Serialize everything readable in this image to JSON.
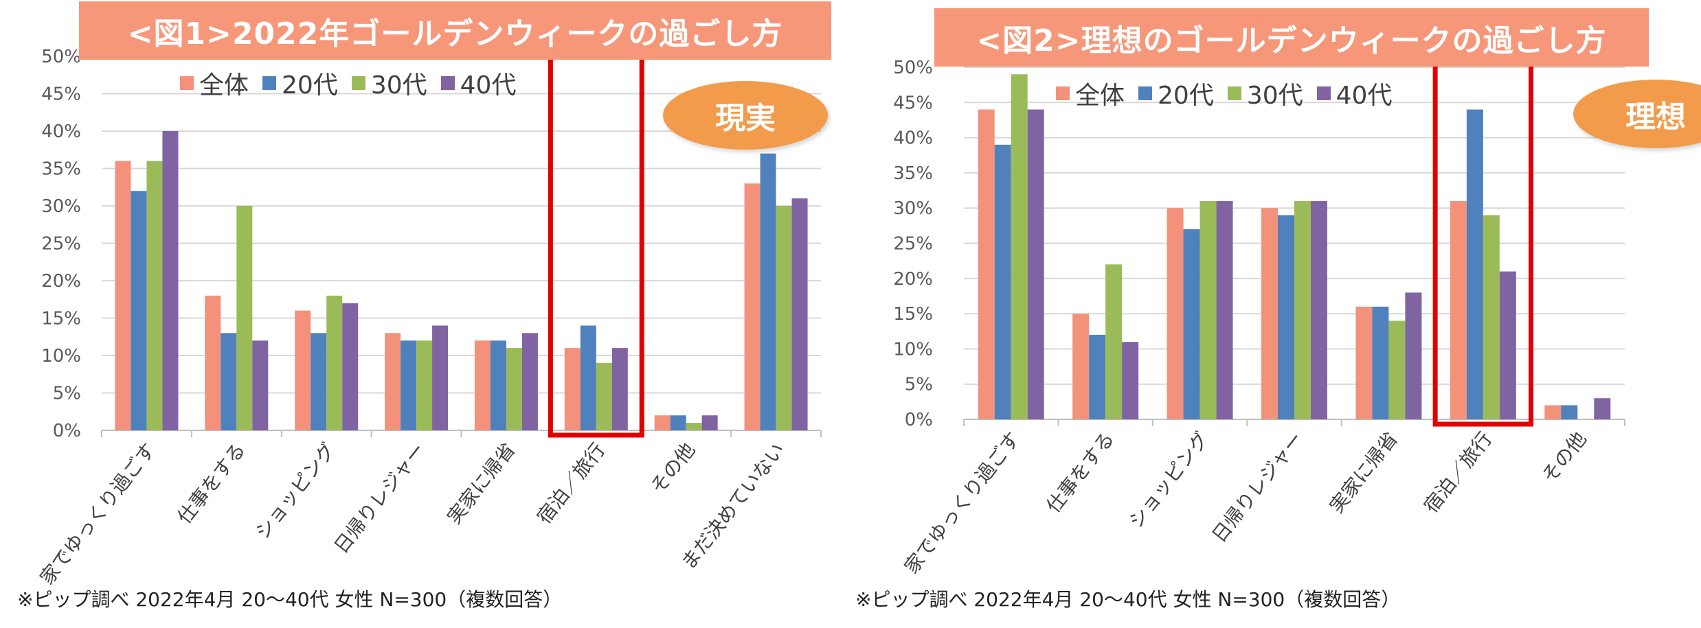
{
  "chart_data": [
    {
      "type": "bar",
      "title": "<図1>2022年ゴールデンウィークの過ごし方",
      "badge": "現実",
      "note": "※ピップ調べ  2022年4月 20～40代 女性 N=300（複数回答）",
      "categories": [
        "家でゆっくり過ごす",
        "仕事をする",
        "ショッピング",
        "日帰りレジャー",
        "実家に帰省",
        "宿泊／旅行",
        "その他",
        "まだ決めていない"
      ],
      "series": [
        {
          "name": "全体",
          "color": "#f4917b",
          "values": [
            36,
            18,
            16,
            13,
            12,
            11,
            2,
            33
          ]
        },
        {
          "name": "20代",
          "color": "#4f81bd",
          "values": [
            32,
            13,
            13,
            12,
            12,
            14,
            2,
            37
          ]
        },
        {
          "name": "30代",
          "color": "#9bbb59",
          "values": [
            36,
            30,
            18,
            12,
            11,
            9,
            1,
            30
          ]
        },
        {
          "name": "40代",
          "color": "#8064a2",
          "values": [
            40,
            12,
            17,
            14,
            13,
            11,
            2,
            31
          ]
        }
      ],
      "yticks": [
        "0%",
        "5%",
        "10%",
        "15%",
        "20%",
        "25%",
        "30%",
        "35%",
        "40%",
        "45%",
        "50%"
      ],
      "ylim": [
        0,
        50
      ],
      "highlight_category": "宿泊／旅行",
      "highlight_color": "#e00000",
      "grid": true,
      "legend_position": "top"
    },
    {
      "type": "bar",
      "title": "<図2>理想のゴールデンウィークの過ごし方",
      "badge": "理想",
      "note": "※ピップ調べ  2022年4月 20～40代 女性 N=300（複数回答）",
      "categories": [
        "家でゆっくり過ごす",
        "仕事をする",
        "ショッピング",
        "日帰りレジャー",
        "実家に帰省",
        "宿泊／旅行",
        "その他"
      ],
      "series": [
        {
          "name": "全体",
          "color": "#f4917b",
          "values": [
            44,
            15,
            30,
            30,
            16,
            31,
            2
          ]
        },
        {
          "name": "20代",
          "color": "#4f81bd",
          "values": [
            39,
            12,
            27,
            29,
            16,
            44,
            2
          ]
        },
        {
          "name": "30代",
          "color": "#9bbb59",
          "values": [
            49,
            22,
            31,
            31,
            14,
            29,
            0
          ]
        },
        {
          "name": "40代",
          "color": "#8064a2",
          "values": [
            44,
            11,
            31,
            31,
            18,
            21,
            3
          ]
        }
      ],
      "yticks": [
        "0%",
        "5%",
        "10%",
        "15%",
        "20%",
        "25%",
        "30%",
        "35%",
        "40%",
        "45%",
        "50%"
      ],
      "ylim": [
        0,
        50
      ],
      "highlight_category": "宿泊／旅行",
      "highlight_color": "#e00000",
      "grid": true,
      "legend_position": "top"
    }
  ]
}
